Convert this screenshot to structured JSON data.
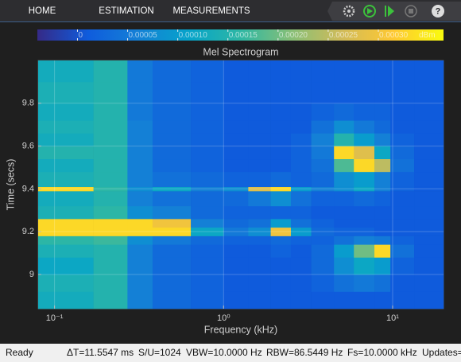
{
  "toolbar": {
    "tabs": [
      "HOME",
      "ESTIMATION",
      "MEASUREMENTS"
    ]
  },
  "chart_data": {
    "type": "heatmap",
    "title": "Mel Spectrogram",
    "x_label": "Frequency (kHz)",
    "y_label": "Time (secs)",
    "x_scale": "log",
    "grid": true,
    "xlim": [
      0.08,
      20
    ],
    "xticks": [
      {
        "value": 0.1,
        "label": "10⁻¹"
      },
      {
        "value": 1,
        "label": "10⁰"
      },
      {
        "value": 10,
        "label": "10¹"
      }
    ],
    "ylim": [
      8.84,
      10
    ],
    "yticks": [
      9,
      9.2,
      9.4,
      9.6,
      9.8
    ],
    "colorbar": {
      "unit": "dBm",
      "clim": [
        -4e-05,
        0.000365
      ],
      "ticks": [
        0,
        5e-05,
        {
          "value": 0.0001,
          "label": "0.00010"
        },
        0.00015,
        {
          "value": 0.0002,
          "label": "0.00020"
        },
        0.00025,
        {
          "value": 0.0003,
          "label": "0.00030"
        }
      ]
    },
    "colormap": [
      "#352a87",
      "#0f5cdd",
      "#1481d6",
      "#06a4ca",
      "#2eb7a4",
      "#87bf77",
      "#d1bb59",
      "#fec832",
      "#f9fb0e"
    ],
    "x_edges": [
      0.08,
      0.17,
      0.27,
      0.38,
      0.64,
      1.0,
      1.4,
      1.9,
      2.5,
      3.3,
      4.5,
      5.9,
      7.8,
      9.7,
      13.4,
      20
    ],
    "y_edges": [
      8.84,
      8.92,
      9.0,
      9.08,
      9.14,
      9.18,
      9.22,
      9.26,
      9.32,
      9.39,
      9.41,
      9.48,
      9.54,
      9.6,
      9.66,
      9.72,
      9.8,
      9.9,
      10
    ],
    "values": [
      [
        0.00013,
        0.00015,
        6e-05,
        3e-05,
        2e-05,
        1e-05,
        1e-05,
        1e-05,
        1e-05,
        1e-05,
        1e-05,
        1e-05,
        1e-05,
        1e-05,
        1e-05
      ],
      [
        0.00014,
        0.00015,
        6e-05,
        3e-05,
        2e-05,
        1e-05,
        1e-05,
        1e-05,
        1e-05,
        2e-05,
        4e-05,
        5e-05,
        4e-05,
        1e-05,
        1e-05
      ],
      [
        0.00012,
        0.00015,
        6e-05,
        3e-05,
        2e-05,
        1e-05,
        1e-05,
        1e-05,
        1e-05,
        3e-05,
        8e-05,
        0.00012,
        0.0001,
        2e-05,
        1e-05
      ],
      [
        0.00014,
        0.00015,
        6e-05,
        3e-05,
        2e-05,
        1e-05,
        1e-05,
        2e-05,
        1e-05,
        3e-05,
        0.0001,
        0.0002,
        0.00033,
        4e-05,
        1e-05
      ],
      [
        0.00016,
        0.00017,
        8e-05,
        5e-05,
        3e-05,
        2e-05,
        2e-05,
        3e-05,
        2e-05,
        2e-05,
        4e-05,
        6e-05,
        5e-05,
        2e-05,
        1e-05
      ],
      [
        0.00033,
        0.00033,
        0.00033,
        0.00033,
        0.00012,
        5e-05,
        8e-05,
        0.0003,
        0.0001,
        3e-05,
        2e-05,
        2e-05,
        1e-05,
        1e-05,
        1e-05
      ],
      [
        0.00033,
        0.00033,
        0.00033,
        0.0003,
        6e-05,
        3e-05,
        4e-05,
        0.0001,
        4e-05,
        2e-05,
        1e-05,
        1e-05,
        1e-05,
        1e-05,
        1e-05
      ],
      [
        0.00014,
        0.00016,
        8e-05,
        6e-05,
        3e-05,
        2e-05,
        2e-05,
        2e-05,
        2e-05,
        1e-05,
        1e-05,
        1e-05,
        1e-05,
        1e-05,
        1e-05
      ],
      [
        0.00013,
        0.00015,
        6e-05,
        4e-05,
        3e-05,
        3e-05,
        5e-05,
        8e-05,
        4e-05,
        2e-05,
        2e-05,
        3e-05,
        2e-05,
        1e-05,
        1e-05
      ],
      [
        0.00033,
        0.00016,
        8e-05,
        0.00012,
        6e-05,
        8e-05,
        0.00028,
        0.00033,
        0.0001,
        6e-05,
        8e-05,
        0.00012,
        6e-05,
        2e-05,
        1e-05
      ],
      [
        0.00014,
        0.00015,
        6e-05,
        4e-05,
        3e-05,
        2e-05,
        2e-05,
        3e-05,
        2e-05,
        3e-05,
        8e-05,
        0.0001,
        6e-05,
        2e-05,
        1e-05
      ],
      [
        0.00013,
        0.00015,
        6e-05,
        3e-05,
        2e-05,
        1e-05,
        1e-05,
        1e-05,
        2e-05,
        4e-05,
        0.00018,
        0.00033,
        0.00025,
        4e-05,
        1e-05
      ],
      [
        0.00015,
        0.00015,
        6e-05,
        3e-05,
        2e-05,
        1e-05,
        1e-05,
        1e-05,
        2e-05,
        5e-05,
        0.00033,
        0.00028,
        0.00012,
        3e-05,
        1e-05
      ],
      [
        0.00013,
        0.00015,
        6e-05,
        3e-05,
        2e-05,
        1e-05,
        1e-05,
        1e-05,
        2e-05,
        6e-05,
        0.00015,
        0.0001,
        6e-05,
        2e-05,
        1e-05
      ],
      [
        0.00014,
        0.00015,
        6e-05,
        3e-05,
        2e-05,
        1e-05,
        1e-05,
        1e-05,
        1e-05,
        4e-05,
        8e-05,
        5e-05,
        3e-05,
        1e-05,
        1e-05
      ],
      [
        0.00013,
        0.00015,
        5e-05,
        3e-05,
        2e-05,
        1e-05,
        1e-05,
        1e-05,
        1e-05,
        2e-05,
        3e-05,
        2e-05,
        2e-05,
        1e-05,
        1e-05
      ],
      [
        0.00014,
        0.00015,
        5e-05,
        3e-05,
        2e-05,
        1e-05,
        1e-05,
        1e-05,
        1e-05,
        1e-05,
        1e-05,
        1e-05,
        1e-05,
        1e-05,
        1e-05
      ],
      [
        0.00013,
        0.00015,
        5e-05,
        3e-05,
        2e-05,
        1e-05,
        1e-05,
        1e-05,
        1e-05,
        1e-05,
        1e-05,
        1e-05,
        1e-05,
        1e-05,
        1e-05
      ]
    ]
  },
  "status_bar": {
    "state": "Ready",
    "items": [
      "ΔT=11.5547 ms",
      "S/U=1024",
      "VBW=10.0000 Hz",
      "RBW=86.5449 Hz",
      "Fs=10.0000 kHz",
      "Updates="
    ]
  }
}
